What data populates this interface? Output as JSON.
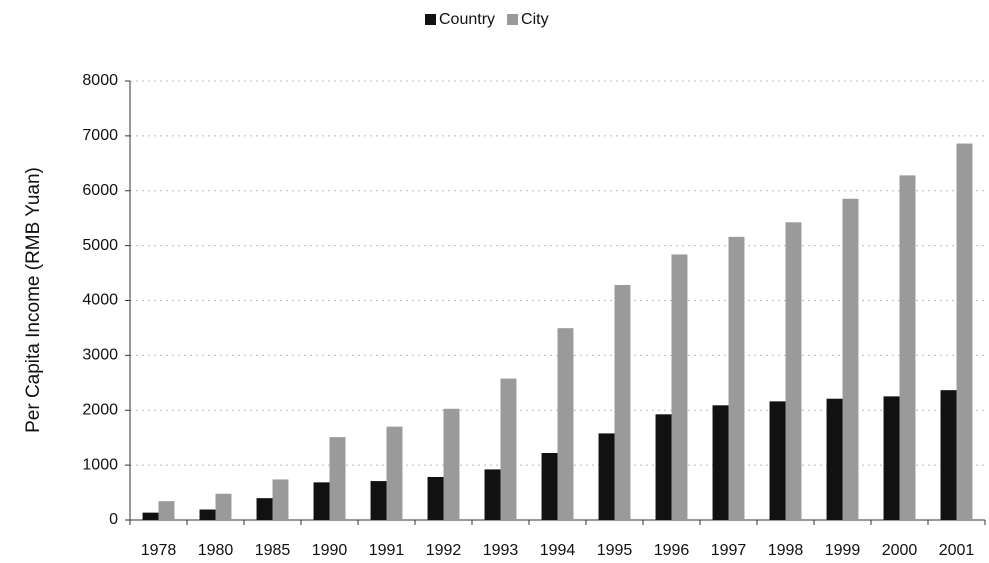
{
  "chart_data": {
    "type": "bar",
    "y_label": "Per Capita Income (RMB Yuan)",
    "categories": [
      "1978",
      "1980",
      "1985",
      "1990",
      "1991",
      "1992",
      "1993",
      "1994",
      "1995",
      "1996",
      "1997",
      "1998",
      "1999",
      "2000",
      "2001"
    ],
    "series": [
      {
        "name": "Country",
        "color": "#111111",
        "values": [
          134,
          191,
          398,
          686,
          709,
          784,
          922,
          1221,
          1578,
          1926,
          2090,
          2162,
          2210,
          2253,
          2366
        ]
      },
      {
        "name": "City",
        "color": "#9a9a9a",
        "values": [
          343,
          478,
          739,
          1510,
          1701,
          2027,
          2577,
          3496,
          4283,
          4839,
          5160,
          5425,
          5854,
          6280,
          6860
        ]
      }
    ],
    "ylim": [
      0,
      8000
    ],
    "yticks": [
      0,
      1000,
      2000,
      3000,
      4000,
      5000,
      6000,
      7000,
      8000
    ],
    "grid": true,
    "legend": "top"
  }
}
